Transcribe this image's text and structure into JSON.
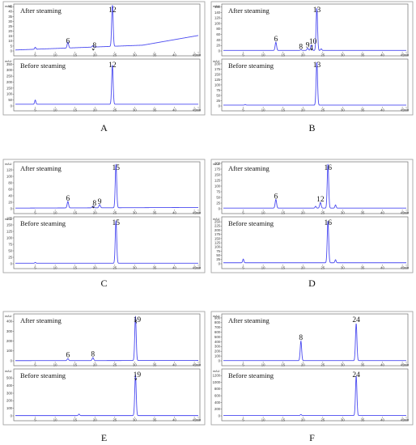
{
  "figure": {
    "colors": {
      "trace": "#4a4af0",
      "frame": "#6f6f6f",
      "text": "#111111"
    }
  },
  "chart_data": [
    {
      "letter": "A",
      "type": "line",
      "x_ticks": [
        "5",
        "10",
        "15",
        "20",
        "25",
        "30",
        "35",
        "40",
        "45",
        "min"
      ],
      "x_range": [
        0,
        46
      ],
      "charts": [
        {
          "title": "After steaming",
          "unit": "mAU",
          "ylim": [
            0,
            46
          ],
          "y_ticks": [
            "0",
            "5",
            "10",
            "15",
            "20",
            "25",
            "30",
            "35",
            "40",
            "45"
          ],
          "baseline": {
            "start": 1,
            "end": 8
          },
          "drift_from": 32,
          "peaks": [
            {
              "label": "6",
              "rt": 13.2,
              "height": 6
            },
            {
              "label": "8",
              "rt": 19.5,
              "height": 1.5,
              "arrow": true
            },
            {
              "label": "12",
              "rt": 24.4,
              "height": 44
            }
          ],
          "extra_peaks": [
            {
              "rt": 5,
              "height": 2
            }
          ]
        },
        {
          "title": "Before steaming",
          "unit": "mAU",
          "ylim": [
            0,
            380
          ],
          "y_ticks": [
            "0",
            "50",
            "100",
            "150",
            "200",
            "250",
            "300",
            "350"
          ],
          "baseline": {
            "start": 15,
            "end": 15
          },
          "peaks": [
            {
              "label": "12",
              "rt": 24.4,
              "height": 330
            }
          ],
          "extra_peaks": [
            {
              "rt": 5,
              "height": 35
            }
          ]
        }
      ]
    },
    {
      "letter": "B",
      "type": "line",
      "x_ticks": [
        "5",
        "10",
        "15",
        "20",
        "25",
        "30",
        "35",
        "40",
        "45",
        "min"
      ],
      "x_range": [
        0,
        46
      ],
      "charts": [
        {
          "title": "After steaming",
          "unit": "mAU",
          "ylim": [
            0,
            165
          ],
          "y_ticks": [
            "0",
            "20",
            "40",
            "60",
            "80",
            "100",
            "120",
            "140",
            "160"
          ],
          "baseline": {
            "start": 2,
            "end": 2
          },
          "peaks": [
            {
              "label": "6",
              "rt": 13.2,
              "height": 30
            },
            {
              "label": "8",
              "rt": 19.5,
              "height": 2
            },
            {
              "label": "9",
              "rt": 21.2,
              "height": 8
            },
            {
              "label": "10",
              "rt": 22.1,
              "height": 20,
              "arrow": true
            },
            {
              "label": "13",
              "rt": 23.5,
              "height": 155
            }
          ],
          "extra_peaks": [
            {
              "rt": 24.6,
              "height": 6
            }
          ]
        },
        {
          "title": "Before steaming",
          "unit": "mAU",
          "ylim": [
            0,
            215
          ],
          "y_ticks": [
            "0",
            "25",
            "50",
            "75",
            "100",
            "125",
            "150",
            "175",
            "200"
          ],
          "baseline": {
            "start": 4,
            "end": 4
          },
          "peaks": [
            {
              "label": "13",
              "rt": 23.5,
              "height": 205
            }
          ],
          "extra_peaks": [
            {
              "rt": 5.5,
              "height": 3
            }
          ]
        }
      ]
    },
    {
      "letter": "C",
      "type": "line",
      "x_ticks": [
        "5",
        "10",
        "15",
        "20",
        "25",
        "30",
        "35",
        "40",
        "45",
        "min"
      ],
      "x_range": [
        0,
        46
      ],
      "charts": [
        {
          "title": "After steaming",
          "unit": "mAU",
          "ylim": [
            0,
            140
          ],
          "y_ticks": [
            "0",
            "20",
            "40",
            "60",
            "80",
            "100",
            "120"
          ],
          "baseline": {
            "start": 2,
            "end": 4
          },
          "peaks": [
            {
              "label": "6",
              "rt": 13.2,
              "height": 20
            },
            {
              "label": "8",
              "rt": 19.5,
              "height": 5,
              "arrow": true
            },
            {
              "label": "9",
              "rt": 21.2,
              "height": 10
            },
            {
              "label": "15",
              "rt": 25.3,
              "height": 135
            }
          ],
          "extra_peaks": []
        },
        {
          "title": "Before steaming",
          "unit": "mAU",
          "ylim": [
            0,
            175
          ],
          "y_ticks": [
            "0",
            "25",
            "50",
            "75",
            "100",
            "125",
            "150",
            "175"
          ],
          "baseline": {
            "start": 2,
            "end": 2
          },
          "peaks": [
            {
              "label": "15",
              "rt": 25.3,
              "height": 165
            }
          ],
          "extra_peaks": [
            {
              "rt": 5,
              "height": 3
            }
          ]
        }
      ]
    },
    {
      "letter": "D",
      "type": "line",
      "x_ticks": [
        "5",
        "10",
        "15",
        "20",
        "25",
        "30",
        "35",
        "40",
        "45",
        "min"
      ],
      "x_range": [
        0,
        46
      ],
      "charts": [
        {
          "title": "After steaming",
          "unit": "mAU",
          "ylim": [
            0,
            200
          ],
          "y_ticks": [
            "0",
            "25",
            "50",
            "75",
            "100",
            "125",
            "150",
            "175",
            "200"
          ],
          "baseline": {
            "start": 3,
            "end": 3
          },
          "peaks": [
            {
              "label": "6",
              "rt": 13.2,
              "height": 38
            },
            {
              "label": "12",
              "rt": 24.4,
              "height": 25
            },
            {
              "label": "16",
              "rt": 26.3,
              "height": 195
            }
          ],
          "extra_peaks": [
            {
              "rt": 28.2,
              "height": 14
            },
            {
              "rt": 23.2,
              "height": 8
            }
          ]
        },
        {
          "title": "Before steaming",
          "unit": "mAU",
          "ylim": [
            0,
            270
          ],
          "y_ticks": [
            "0",
            "25",
            "50",
            "75",
            "100",
            "125",
            "150",
            "175",
            "200",
            "225",
            "250"
          ],
          "baseline": {
            "start": 6,
            "end": 6
          },
          "peaks": [
            {
              "label": "16",
              "rt": 26.3,
              "height": 250
            }
          ],
          "extra_peaks": [
            {
              "rt": 28.2,
              "height": 18
            },
            {
              "rt": 5,
              "height": 22
            }
          ]
        }
      ]
    },
    {
      "letter": "E",
      "type": "line",
      "x_ticks": [
        "5",
        "10",
        "15",
        "20",
        "25",
        "30",
        "35",
        "40",
        "45",
        "min"
      ],
      "x_range": [
        0,
        46
      ],
      "charts": [
        {
          "title": "After steaming",
          "unit": "mAU",
          "ylim": [
            0,
            460
          ],
          "y_ticks": [
            "0",
            "100",
            "200",
            "300",
            "400"
          ],
          "baseline": {
            "start": 2,
            "end": 4
          },
          "peaks": [
            {
              "label": "6",
              "rt": 13.2,
              "height": 20
            },
            {
              "label": "8",
              "rt": 19.5,
              "height": 30
            },
            {
              "label": "19",
              "rt": 30.2,
              "height": 450,
              "arrow": true
            }
          ],
          "extra_peaks": []
        },
        {
          "title": "Before steaming",
          "unit": "mAU",
          "ylim": [
            0,
            600
          ],
          "y_ticks": [
            "0",
            "100",
            "200",
            "300",
            "400",
            "500"
          ],
          "baseline": {
            "start": 4,
            "end": 4
          },
          "peaks": [
            {
              "label": "19",
              "rt": 30.2,
              "height": 540,
              "arrow": true
            }
          ],
          "extra_peaks": [
            {
              "rt": 16,
              "height": 20
            }
          ]
        }
      ]
    },
    {
      "letter": "F",
      "type": "line",
      "x_ticks": [
        "5",
        "10",
        "15",
        "20",
        "25",
        "30",
        "35",
        "40",
        "45",
        "min"
      ],
      "x_range": [
        0,
        46
      ],
      "charts": [
        {
          "title": "After steaming",
          "unit": "mAU",
          "ylim": [
            0,
            950
          ],
          "y_ticks": [
            "0",
            "100",
            "200",
            "300",
            "400",
            "500",
            "600",
            "700",
            "800",
            "900"
          ],
          "baseline": {
            "start": 5,
            "end": 5
          },
          "peaks": [
            {
              "label": "8",
              "rt": 19.5,
              "height": 410
            },
            {
              "label": "24",
              "rt": 33.4,
              "height": 780
            }
          ],
          "extra_peaks": []
        },
        {
          "title": "Before steaming",
          "unit": "mAU",
          "ylim": [
            0,
            1350
          ],
          "y_ticks": [
            "0",
            "200",
            "400",
            "600",
            "800",
            "1000",
            "1200"
          ],
          "baseline": {
            "start": 10,
            "end": 10
          },
          "peaks": [
            {
              "label": "24",
              "rt": 33.4,
              "height": 1180
            }
          ],
          "extra_peaks": [
            {
              "rt": 19.5,
              "height": 30
            }
          ]
        }
      ]
    }
  ]
}
